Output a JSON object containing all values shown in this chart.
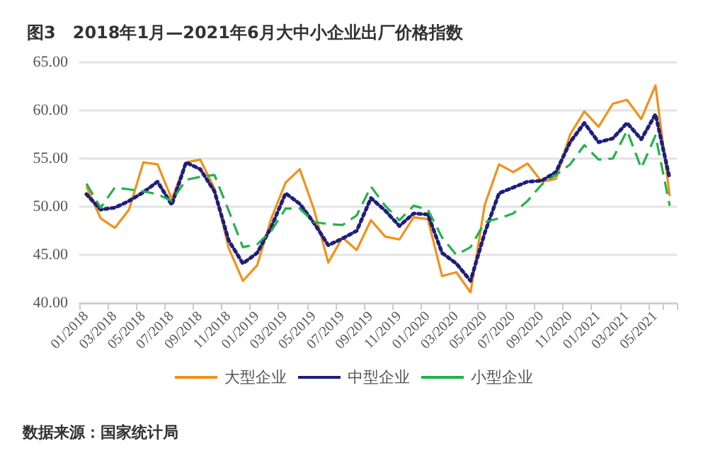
{
  "chart_data": {
    "type": "line",
    "title": "图3　2018年1月—2021年6月大中小企业出厂价格指数",
    "categories": [
      "01/2018",
      null,
      "03/2018",
      null,
      "05/2018",
      null,
      "07/2018",
      null,
      "09/2018",
      null,
      "11/2018",
      null,
      "01/2019",
      null,
      "03/2019",
      null,
      "05/2019",
      null,
      "07/2019",
      null,
      "09/2019",
      null,
      "11/2019",
      null,
      "01/2020",
      null,
      "03/2020",
      null,
      "05/2020",
      null,
      "07/2020",
      null,
      "09/2020",
      null,
      "11/2020",
      null,
      "01/2021",
      null,
      "03/2021",
      null,
      "05/2021",
      null
    ],
    "series": [
      {
        "name": "大型企业",
        "color": "#f39019",
        "line_style": "solid",
        "values": [
          52.1,
          48.8,
          47.8,
          49.7,
          54.6,
          54.4,
          50.8,
          54.6,
          54.9,
          51.9,
          45.7,
          42.3,
          43.9,
          48.8,
          52.5,
          53.9,
          49.7,
          44.2,
          46.8,
          45.5,
          48.6,
          46.9,
          46.6,
          48.9,
          48.7,
          42.8,
          43.2,
          41.1,
          50.2,
          54.4,
          53.6,
          54.5,
          52.6,
          52.9,
          57.5,
          59.9,
          58.3,
          60.7,
          61.1,
          59.1,
          62.6,
          51.1
        ]
      },
      {
        "name": "中型企业",
        "color": "#1f1f7a",
        "line_style": "dotted",
        "values": [
          51.3,
          49.7,
          49.9,
          50.6,
          51.5,
          52.6,
          50.2,
          54.6,
          53.9,
          51.6,
          46.5,
          44.1,
          45.2,
          47.9,
          51.4,
          50.3,
          48.3,
          46.0,
          46.7,
          47.5,
          50.9,
          49.6,
          48.0,
          49.3,
          49.2,
          45.2,
          44.1,
          42.3,
          47.3,
          51.4,
          52.0,
          52.6,
          52.7,
          53.6,
          56.7,
          58.7,
          56.7,
          57.1,
          58.7,
          57.0,
          59.6,
          52.9
        ]
      },
      {
        "name": "小型企业",
        "color": "#22b24c",
        "line_style": "dashed",
        "values": [
          52.4,
          49.9,
          52.0,
          51.8,
          51.6,
          51.3,
          50.6,
          52.8,
          53.1,
          53.3,
          49.6,
          45.8,
          46.1,
          47.5,
          49.8,
          49.8,
          48.4,
          48.2,
          48.1,
          49.1,
          52.1,
          50.1,
          48.6,
          50.1,
          49.7,
          46.8,
          45.0,
          45.8,
          48.4,
          48.8,
          49.3,
          50.6,
          52.3,
          53.3,
          54.4,
          56.4,
          54.9,
          55.0,
          57.9,
          54.0,
          57.4,
          50.1
        ]
      }
    ],
    "ylim": [
      40,
      65
    ],
    "yticks": [
      {
        "value": 40,
        "label": "40.00"
      },
      {
        "value": 45,
        "label": "45.00"
      },
      {
        "value": 50,
        "label": "50.00"
      },
      {
        "value": 55,
        "label": "55.00"
      },
      {
        "value": 60,
        "label": "60.00"
      },
      {
        "value": 65,
        "label": "65.00"
      }
    ],
    "grid": "y",
    "legend": "bottom",
    "marker": "none",
    "annotations": [
      "数据来源：国家统计局"
    ]
  }
}
